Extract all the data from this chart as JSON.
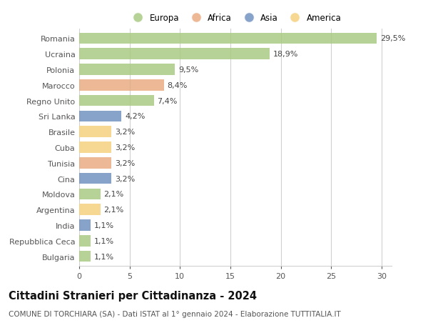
{
  "countries": [
    "Romania",
    "Ucraina",
    "Polonia",
    "Marocco",
    "Regno Unito",
    "Sri Lanka",
    "Brasile",
    "Cuba",
    "Tunisia",
    "Cina",
    "Moldova",
    "Argentina",
    "India",
    "Repubblica Ceca",
    "Bulgaria"
  ],
  "values": [
    29.5,
    18.9,
    9.5,
    8.4,
    7.4,
    4.2,
    3.2,
    3.2,
    3.2,
    3.2,
    2.1,
    2.1,
    1.1,
    1.1,
    1.1
  ],
  "labels": [
    "29,5%",
    "18,9%",
    "9,5%",
    "8,4%",
    "7,4%",
    "4,2%",
    "3,2%",
    "3,2%",
    "3,2%",
    "3,2%",
    "2,1%",
    "2,1%",
    "1,1%",
    "1,1%",
    "1,1%"
  ],
  "continents": [
    "Europa",
    "Europa",
    "Europa",
    "Africa",
    "Europa",
    "Asia",
    "America",
    "America",
    "Africa",
    "Asia",
    "Europa",
    "America",
    "Asia",
    "Europa",
    "Europa"
  ],
  "continent_colors": {
    "Europa": "#a8c97f",
    "Africa": "#e8a97e",
    "Asia": "#6e8fbf",
    "America": "#f5d07a"
  },
  "legend_entries": [
    "Europa",
    "Africa",
    "Asia",
    "America"
  ],
  "legend_colors": [
    "#a8c97f",
    "#e8a97e",
    "#6e8fbf",
    "#f5d07a"
  ],
  "title": "Cittadini Stranieri per Cittadinanza - 2024",
  "subtitle": "COMUNE DI TORCHIARA (SA) - Dati ISTAT al 1° gennaio 2024 - Elaborazione TUTTITALIA.IT",
  "xlim": [
    0,
    31
  ],
  "xticks": [
    0,
    5,
    10,
    15,
    20,
    25,
    30
  ],
  "background_color": "#ffffff",
  "bar_height": 0.72,
  "grid_color": "#d0d0d0",
  "label_fontsize": 8,
  "tick_fontsize": 8,
  "title_fontsize": 10.5,
  "subtitle_fontsize": 7.5
}
